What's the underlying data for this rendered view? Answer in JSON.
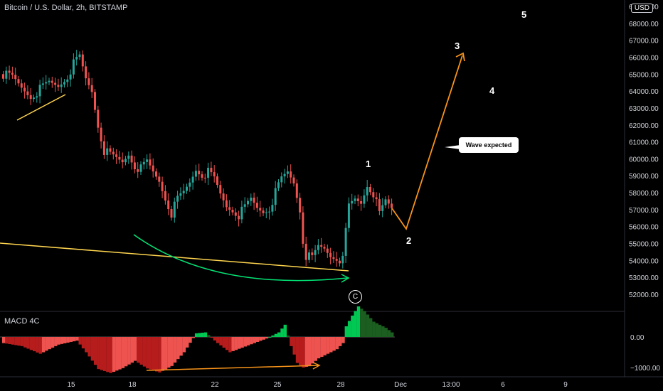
{
  "header": {
    "title": "Bitcoin / U.S. Dollar, 2h, BITSTAMP",
    "currency_badge": "USD"
  },
  "macd": {
    "title": "MACD 4C",
    "ticks": [
      "0.00",
      "−1000.00"
    ]
  },
  "annotations": {
    "callout": "Wave expected",
    "waves": [
      "1",
      "2",
      "3",
      "4",
      "5"
    ],
    "wave_c": "C"
  },
  "colors": {
    "background": "#000000",
    "bull": "#26a69a",
    "bull_bright": "#00c853",
    "bear": "#ef5350",
    "bear_dark": "#b71c1c",
    "orange": "#f7931a",
    "yellow": "#ffd54f",
    "green_arrow": "#00e676"
  },
  "chart_data": [
    {
      "type": "candlestick",
      "title": "Bitcoin / U.S. Dollar, 2h, BITSTAMP",
      "y_ticks": [
        "52000.00",
        "53000.00",
        "54000.00",
        "55000.00",
        "56000.00",
        "57000.00",
        "58000.00",
        "59000.00",
        "60000.00",
        "61000.00",
        "62000.00",
        "63000.00",
        "64000.00",
        "65000.00",
        "66000.00",
        "67000.00",
        "68000.00",
        "69000.00"
      ],
      "x_ticks": [
        "15",
        "18",
        "22",
        "25",
        "28",
        "Dec",
        "13:00",
        "6",
        "9"
      ],
      "ylim": [
        51600,
        69500
      ],
      "close_path": [
        [
          0,
          65000
        ],
        [
          3,
          64800
        ],
        [
          6,
          64200
        ],
        [
          9,
          63700
        ],
        [
          12,
          64100
        ],
        [
          15,
          64500
        ],
        [
          18,
          64300
        ],
        [
          21,
          64900
        ],
        [
          23,
          65600
        ],
        [
          25,
          66000
        ],
        [
          27,
          64700
        ],
        [
          29,
          64000
        ],
        [
          31,
          62000
        ],
        [
          33,
          60500
        ],
        [
          35,
          60200
        ],
        [
          37,
          60000
        ],
        [
          39,
          59800
        ],
        [
          41,
          60300
        ],
        [
          43,
          59600
        ],
        [
          45,
          59400
        ],
        [
          47,
          59800
        ],
        [
          49,
          59200
        ],
        [
          51,
          58700
        ],
        [
          53,
          57700
        ],
        [
          55,
          56800
        ],
        [
          57,
          57600
        ],
        [
          59,
          58000
        ],
        [
          61,
          58600
        ],
        [
          63,
          59400
        ],
        [
          65,
          59100
        ],
        [
          67,
          59200
        ],
        [
          69,
          58800
        ],
        [
          71,
          57900
        ],
        [
          73,
          57200
        ],
        [
          75,
          57000
        ],
        [
          77,
          56700
        ],
        [
          79,
          57100
        ],
        [
          81,
          57600
        ],
        [
          83,
          57100
        ],
        [
          85,
          56900
        ],
        [
          87,
          57100
        ],
        [
          89,
          58000
        ],
        [
          91,
          58800
        ],
        [
          93,
          59200
        ],
        [
          95,
          58600
        ],
        [
          97,
          57000
        ],
        [
          98,
          55200
        ],
        [
          99,
          54300
        ],
        [
          101,
          54100
        ],
        [
          103,
          54800
        ],
        [
          105,
          54700
        ],
        [
          107,
          54300
        ],
        [
          109,
          54200
        ],
        [
          111,
          54000
        ],
        [
          112,
          55700
        ],
        [
          113,
          57200
        ],
        [
          115,
          57600
        ],
        [
          117,
          57400
        ],
        [
          119,
          58500
        ],
        [
          121,
          58000
        ],
        [
          123,
          56700
        ],
        [
          125,
          57500
        ],
        [
          127,
          57100
        ]
      ],
      "macd_histogram": [
        [
          0,
          -200
        ],
        [
          6,
          -300
        ],
        [
          12,
          -550
        ],
        [
          18,
          -250
        ],
        [
          24,
          -120
        ],
        [
          27,
          -500
        ],
        [
          31,
          -1050
        ],
        [
          35,
          -1180
        ],
        [
          39,
          -1020
        ],
        [
          43,
          -780
        ],
        [
          47,
          -1030
        ],
        [
          51,
          -1160
        ],
        [
          55,
          -950
        ],
        [
          59,
          -500
        ],
        [
          63,
          120
        ],
        [
          66,
          150
        ],
        [
          70,
          -200
        ],
        [
          74,
          -500
        ],
        [
          78,
          -350
        ],
        [
          82,
          -200
        ],
        [
          86,
          -50
        ],
        [
          90,
          150
        ],
        [
          92,
          400
        ],
        [
          94,
          -300
        ],
        [
          96,
          -850
        ],
        [
          98,
          -1000
        ],
        [
          100,
          -950
        ],
        [
          103,
          -700
        ],
        [
          106,
          -550
        ],
        [
          109,
          -400
        ],
        [
          111,
          -200
        ],
        [
          112,
          350
        ],
        [
          114,
          700
        ],
        [
          116,
          1000
        ],
        [
          118,
          850
        ],
        [
          121,
          500
        ],
        [
          125,
          300
        ],
        [
          127,
          150
        ]
      ]
    }
  ]
}
